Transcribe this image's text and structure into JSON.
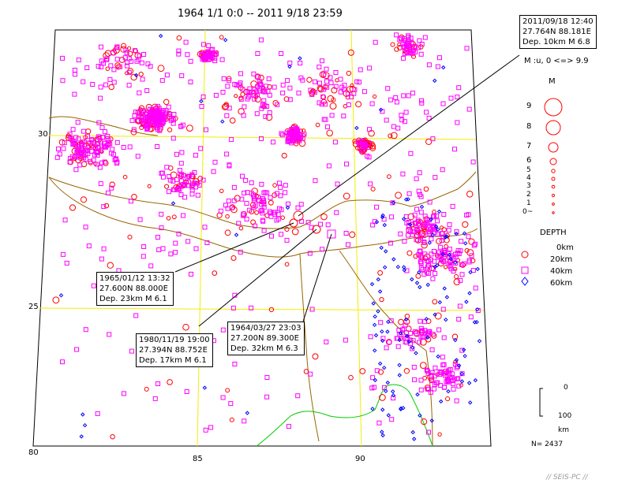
{
  "header": {
    "title": "1964 1/1 0:0  --  2011 9/18 23:59"
  },
  "axes": {
    "lat_labels": [
      "30",
      "25"
    ],
    "lon_labels": [
      "80",
      "85",
      "90"
    ]
  },
  "callouts": [
    {
      "lines": [
        "2011/09/18 12:40",
        "27.764N  88.181E",
        "Dep. 10km    M 6.8"
      ]
    },
    {
      "lines": [
        "1965/01/12 13:32",
        "27.600N  88.000E",
        "Dep. 23km    M 6.1"
      ]
    },
    {
      "lines": [
        "1980/11/19 19:00",
        "27.394N  88.752E",
        "Dep. 17km    M 6.1"
      ]
    },
    {
      "lines": [
        "1964/03/27 23:03",
        "27.200N  89.300E",
        "Dep. 32km    M 6.3"
      ]
    }
  ],
  "magnitude_legend": {
    "header": "M :u, 0 <=> 9.9",
    "title": "M",
    "labels": [
      "9",
      "8",
      "7",
      "6",
      "5",
      "4",
      "3",
      "2",
      "1",
      "0~"
    ]
  },
  "depth_legend": {
    "title": "DEPTH",
    "labels": [
      "0km",
      "20km",
      "40km",
      "60km"
    ]
  },
  "depth_scale": {
    "top": "0",
    "bottom": "100",
    "unit": "km"
  },
  "stats": {
    "count": "N= 2437"
  },
  "footer": {
    "credit": "// SEIS-PC //"
  },
  "colors": {
    "shallow": "#ff0000",
    "mid": "#ff00ff",
    "deep": "#0000ff",
    "grid": "#ffff00",
    "border": "#996600",
    "boundary": "#00cc00"
  }
}
